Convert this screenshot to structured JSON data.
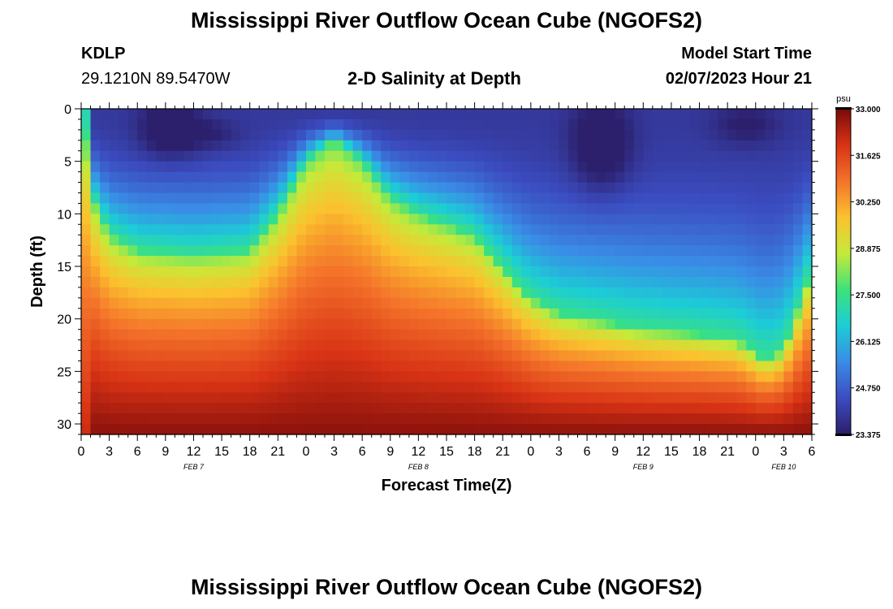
{
  "header": {
    "title": "Mississippi River Outflow Ocean Cube (NGOFS2)",
    "station": "KDLP",
    "coords": "29.1210N  89.5470W",
    "subtitle": "2-D Salinity at Depth",
    "model_start_label": "Model Start Time",
    "model_start_value": "02/07/2023 Hour 21"
  },
  "footer": {
    "title": "Mississippi River Outflow Ocean Cube (NGOFS2)"
  },
  "chart_data": {
    "type": "heatmap",
    "xlabel": "Forecast Time(Z)",
    "ylabel": "Depth (ft)",
    "x_range_hours": [
      0,
      78
    ],
    "y_range_ft": [
      0,
      31
    ],
    "y_ticks": [
      "0",
      "5",
      "10",
      "15",
      "20",
      "25",
      "30"
    ],
    "x_tick_labels": [
      "0",
      "3",
      "6",
      "9",
      "12",
      "15",
      "18",
      "21",
      "0",
      "3",
      "6",
      "9",
      "12",
      "15",
      "18",
      "21",
      "0",
      "3",
      "6",
      "9",
      "12",
      "15",
      "18",
      "21",
      "0",
      "3",
      "6"
    ],
    "day_labels": [
      {
        "text": "FEB 7",
        "hour": 12
      },
      {
        "text": "FEB 8",
        "hour": 36
      },
      {
        "text": "FEB 9",
        "hour": 60
      },
      {
        "text": "FEB 10",
        "hour": 75
      }
    ],
    "colorbar": {
      "unit": "psu",
      "min": 23.375,
      "max": 33.0,
      "ticks": [
        "33.000",
        "31.625",
        "30.250",
        "28.875",
        "27.500",
        "26.125",
        "24.750",
        "23.375"
      ],
      "colors": [
        "#2c1f6b",
        "#3b4cc0",
        "#3a8ce6",
        "#1ccdd6",
        "#3de27a",
        "#c5ea3a",
        "#fbc22e",
        "#f4732a",
        "#d83315",
        "#7a0a0a"
      ]
    },
    "halocline_depth_ft": [
      {
        "hour": 0,
        "depth": 0.3
      },
      {
        "hour": 1,
        "depth": 8
      },
      {
        "hour": 3,
        "depth": 12
      },
      {
        "hour": 6,
        "depth": 13.5
      },
      {
        "hour": 12,
        "depth": 14
      },
      {
        "hour": 18,
        "depth": 13.5
      },
      {
        "hour": 21,
        "depth": 10
      },
      {
        "hour": 24,
        "depth": 5
      },
      {
        "hour": 27,
        "depth": 3
      },
      {
        "hour": 30,
        "depth": 5
      },
      {
        "hour": 33,
        "depth": 8.5
      },
      {
        "hour": 36,
        "depth": 10
      },
      {
        "hour": 39,
        "depth": 11
      },
      {
        "hour": 42,
        "depth": 12
      },
      {
        "hour": 45,
        "depth": 15
      },
      {
        "hour": 48,
        "depth": 18
      },
      {
        "hour": 51,
        "depth": 19.5
      },
      {
        "hour": 54,
        "depth": 20
      },
      {
        "hour": 60,
        "depth": 21
      },
      {
        "hour": 66,
        "depth": 21.5
      },
      {
        "hour": 70,
        "depth": 22
      },
      {
        "hour": 73,
        "depth": 24
      },
      {
        "hour": 75,
        "depth": 23
      },
      {
        "hour": 77,
        "depth": 18
      },
      {
        "hour": 78,
        "depth": 15
      }
    ],
    "fresh_pockets": [
      {
        "hour": 9.5,
        "depth": 2,
        "rx": 3,
        "ry": 2.5,
        "strength": 1
      },
      {
        "hour": 14,
        "depth": 2.5,
        "rx": 3,
        "ry": 1.5,
        "strength": 0.4
      },
      {
        "hour": 55.5,
        "depth": 3.5,
        "rx": 3,
        "ry": 4,
        "strength": 1
      },
      {
        "hour": 71,
        "depth": 1.5,
        "rx": 3.5,
        "ry": 2,
        "strength": 0.5
      }
    ]
  }
}
